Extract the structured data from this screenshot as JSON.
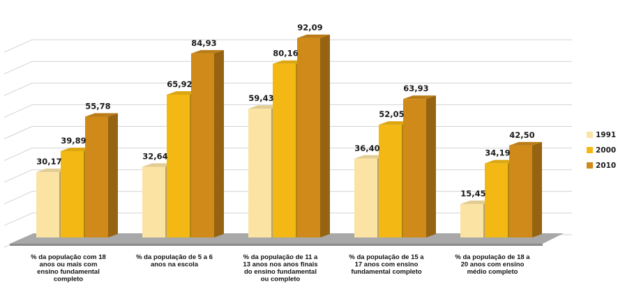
{
  "chart_data": {
    "type": "bar",
    "categories": [
      [
        "% da população com 18",
        "anos ou mais com",
        "ensino fundamental",
        "completo"
      ],
      [
        "% da população de 5 a 6",
        "anos na escola"
      ],
      [
        "% da população de 11 a",
        "13 anos nos anos finais",
        "do ensino fundamental",
        "ou completo"
      ],
      [
        "% da população de 15 a",
        "17 anos com ensino",
        "fundamental completo"
      ],
      [
        "% da população de 18 a",
        "20 anos com ensino",
        "médio completo"
      ]
    ],
    "series": [
      {
        "name": "1991",
        "values": [
          30.17,
          32.64,
          59.43,
          36.4,
          15.45
        ],
        "labels": [
          "30,17",
          "32,64",
          "59,43",
          "36,40",
          "15,45"
        ],
        "color": "#fbe3a4"
      },
      {
        "name": "2000",
        "values": [
          39.89,
          65.92,
          80.16,
          52.05,
          34.19
        ],
        "labels": [
          "39,89",
          "65,92",
          "80,16",
          "52,05",
          "34,19"
        ],
        "color": "#f3b813"
      },
      {
        "name": "2010",
        "values": [
          55.78,
          84.93,
          92.09,
          63.93,
          42.5
        ],
        "labels": [
          "55,78",
          "84,93",
          "92,09",
          "63,93",
          "42,50"
        ],
        "color": "#cf8a19"
      }
    ],
    "ylim": [
      0,
      100
    ],
    "grid": true,
    "legend": "right"
  }
}
